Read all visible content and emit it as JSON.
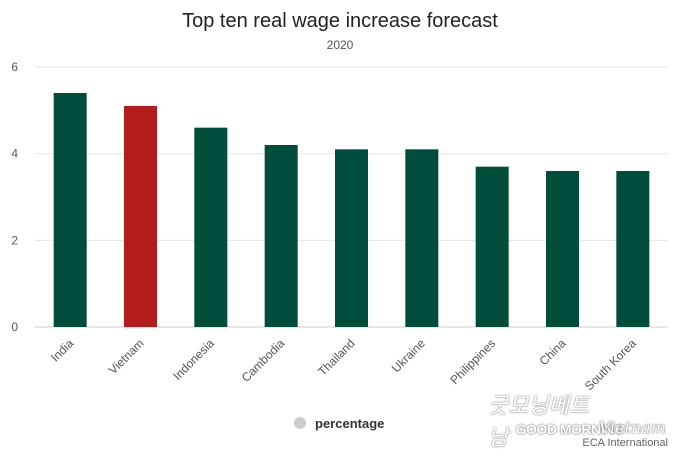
{
  "chart_data": {
    "type": "bar",
    "title": "Top ten real wage increase forecast",
    "subtitle": "2020",
    "categories": [
      "India",
      "Vietnam",
      "Indonesia",
      "Cambodia",
      "Thailand",
      "Ukraine",
      "Philippines",
      "China",
      "South Korea"
    ],
    "series": [
      {
        "name": "percentage",
        "values": [
          5.4,
          5.1,
          4.6,
          4.2,
          4.1,
          4.1,
          3.7,
          3.6,
          3.6
        ]
      }
    ],
    "ylim": [
      0,
      6
    ],
    "yticks": [
      "0",
      "2",
      "4",
      "6"
    ],
    "grid": true,
    "legend": "bottom-center",
    "colors": {
      "bar": "#004d3b",
      "highlight": "#b41c1c",
      "highlight_category": "Vietnam",
      "legend_symbol": "#cccccc"
    }
  },
  "watermark": {
    "script_text": "굿모닝베트남",
    "main_text": "GOOD MORNING",
    "accent_text": "Vietnam",
    "credit": "ECA International"
  }
}
